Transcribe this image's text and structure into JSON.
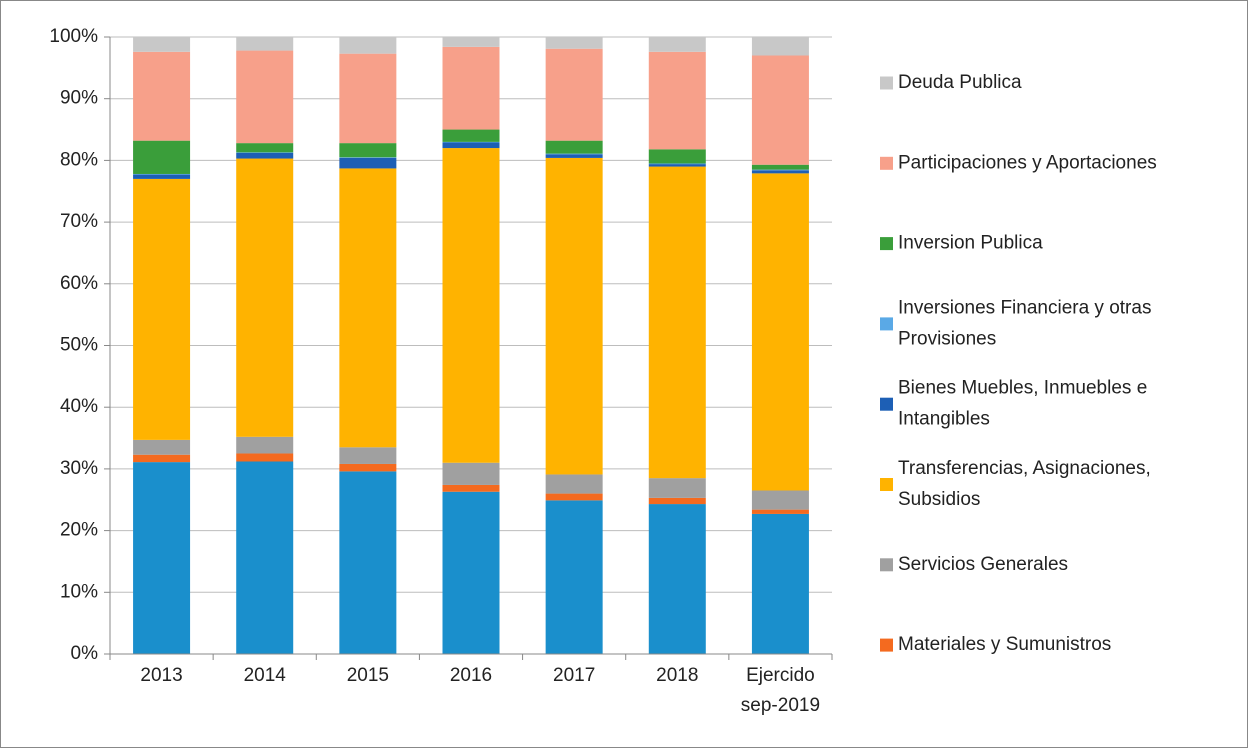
{
  "chart_data": {
    "type": "stacked_bar",
    "categories": [
      "2013",
      "2014",
      "2015",
      "2016",
      "2017",
      "2018",
      "Ejercido sep-2019"
    ],
    "series": [
      {
        "color": "#1a8fcc",
        "values": [
          31.1,
          31.2,
          29.6,
          26.3,
          24.9,
          24.3,
          22.7
        ]
      },
      {
        "name": "Materiales y Sumunistros",
        "color": "#f46a1f",
        "values": [
          1.2,
          1.3,
          1.2,
          1.1,
          1.1,
          1.0,
          0.7
        ]
      },
      {
        "name": "Servicios Generales",
        "color": "#a0a0a0",
        "values": [
          2.4,
          2.7,
          2.7,
          3.6,
          3.1,
          3.2,
          3.1
        ]
      },
      {
        "name": "Transferencias, Asignaciones, Subsidios",
        "color": "#ffb300",
        "values": [
          42.3,
          45.1,
          45.2,
          51.0,
          51.3,
          50.5,
          51.4
        ]
      },
      {
        "name": "Bienes Muebles, Inmuebles e Intangibles",
        "color": "#1d5fb5",
        "values": [
          0.7,
          0.9,
          1.7,
          0.9,
          0.6,
          0.4,
          0.5
        ]
      },
      {
        "name": "Inversiones Financiera y otras Provisiones",
        "color": "#5aa9e6",
        "values": [
          0.1,
          0.1,
          0.1,
          0.1,
          0.1,
          0.1,
          0.1
        ]
      },
      {
        "name": "Inversion Publica",
        "color": "#3a9e3a",
        "values": [
          5.4,
          1.5,
          2.3,
          2.0,
          2.1,
          2.3,
          0.8
        ]
      },
      {
        "name": "Participaciones y Aportaciones",
        "color": "#f7a08a",
        "values": [
          14.4,
          15.0,
          14.5,
          13.4,
          14.9,
          15.8,
          17.7
        ]
      },
      {
        "name": "Deuda Publica",
        "color": "#c8c8c8",
        "values": [
          2.4,
          2.2,
          2.7,
          1.6,
          1.9,
          2.4,
          3.1
        ]
      }
    ],
    "ylim": [
      0,
      100
    ],
    "yticks": [
      {
        "value": 0,
        "label": "0%"
      },
      {
        "value": 10,
        "label": "10%"
      },
      {
        "value": 20,
        "label": "20%"
      },
      {
        "value": 30,
        "label": "30%"
      },
      {
        "value": 40,
        "label": "40%"
      },
      {
        "value": 50,
        "label": "50%"
      },
      {
        "value": 60,
        "label": "60%"
      },
      {
        "value": 70,
        "label": "70%"
      },
      {
        "value": 80,
        "label": "80%"
      },
      {
        "value": 90,
        "label": "90%"
      },
      {
        "value": 100,
        "label": "100%"
      }
    ],
    "grid": true,
    "legend": "right"
  }
}
